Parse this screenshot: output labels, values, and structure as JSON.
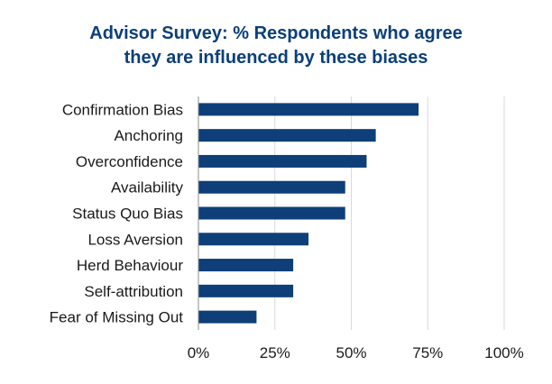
{
  "chart_data": {
    "type": "bar",
    "orientation": "horizontal",
    "title_lines": [
      "Advisor Survey: % Respondents who agree",
      "they are influenced by these biases"
    ],
    "categories": [
      "Confirmation Bias",
      "Anchoring",
      "Overconfidence",
      "Availability",
      "Status Quo Bias",
      "Loss Aversion",
      "Herd Behaviour",
      "Self-attribution",
      "Fear of Missing Out"
    ],
    "values": [
      72,
      58,
      55,
      48,
      48,
      36,
      31,
      31,
      19
    ],
    "x_ticks": [
      "0%",
      "25%",
      "50%",
      "75%",
      "100%"
    ],
    "x_tick_values": [
      0,
      25,
      50,
      75,
      100
    ],
    "xlim": [
      0,
      100
    ],
    "grid": true,
    "legend": "none",
    "colors": {
      "bar": "#0e3f78",
      "title": "#0b3f7a",
      "grid": "#d9d9d9",
      "axis": "#8c8c8c"
    }
  }
}
